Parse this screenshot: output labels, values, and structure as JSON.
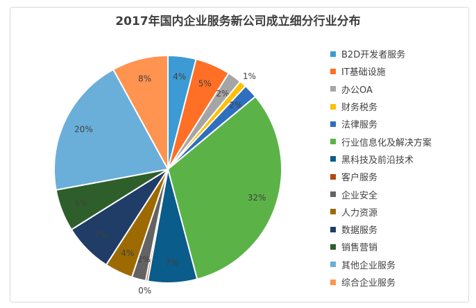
{
  "chart_data": {
    "type": "pie",
    "title": "2017年国内企业服务新公司成立细分行业分布",
    "legend_position": "right",
    "slices": [
      {
        "name": "B2D开发者服务",
        "value": 4,
        "label": "4%",
        "color": "#3C9BD5"
      },
      {
        "name": "IT基础设施",
        "value": 5,
        "label": "5%",
        "color": "#FF6F26"
      },
      {
        "name": "办公OA",
        "value": 2,
        "label": "2%",
        "color": "#A5A5A5"
      },
      {
        "name": "财务税务",
        "value": 1,
        "label": "1%",
        "color": "#FFC000"
      },
      {
        "name": "法律服务",
        "value": 2,
        "label": "2%",
        "color": "#2E6FC0"
      },
      {
        "name": "行业信息化及解决方案",
        "value": 32,
        "label": "32%",
        "color": "#5BB348"
      },
      {
        "name": "黑科技及前沿技术",
        "value": 7,
        "label": "7%",
        "color": "#0A5C8A"
      },
      {
        "name": "客户服务",
        "value": 0.3,
        "label": "0%",
        "color": "#B5460F"
      },
      {
        "name": "企业安全",
        "value": 2,
        "label": "2%",
        "color": "#636363"
      },
      {
        "name": "人力资源",
        "value": 4,
        "label": "4%",
        "color": "#9C6A00"
      },
      {
        "name": "数据服务",
        "value": 7,
        "label": "7%",
        "color": "#1F3D66"
      },
      {
        "name": "销售营销",
        "value": 6,
        "label": "6%",
        "color": "#2E5F2B"
      },
      {
        "name": "其他企业服务",
        "value": 20,
        "label": "20%",
        "color": "#6AAFD9"
      },
      {
        "name": "综合企业服务",
        "value": 8,
        "label": "8%",
        "color": "#FF9350"
      }
    ]
  }
}
